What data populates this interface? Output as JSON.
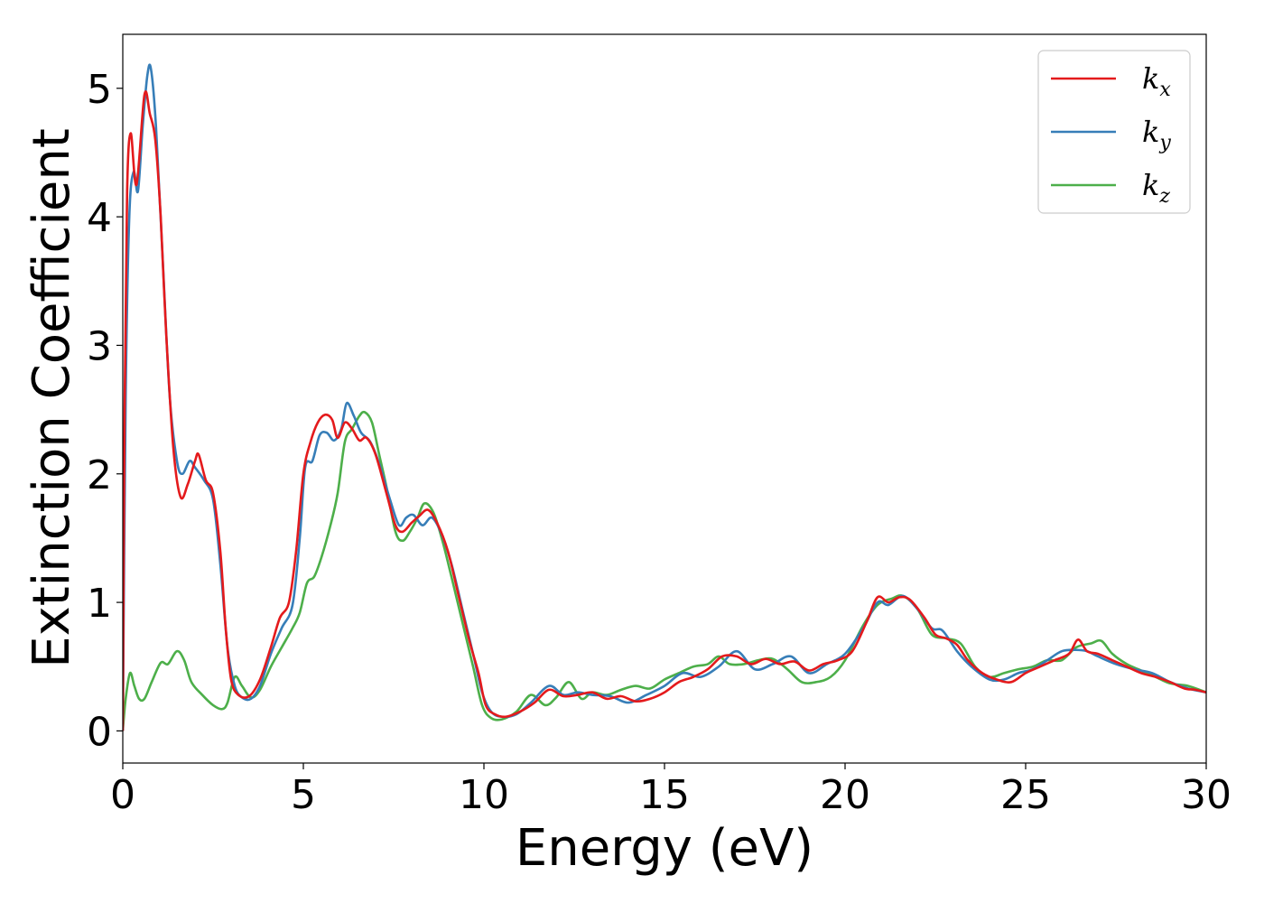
{
  "chart_data": {
    "type": "line",
    "title": "",
    "xlabel": "Energy (eV)",
    "ylabel": "Extinction Coefficient",
    "xlim": [
      0,
      30
    ],
    "ylim": [
      -0.25,
      5.42
    ],
    "xticks": [
      0,
      5,
      10,
      15,
      20,
      25,
      30
    ],
    "yticks": [
      0,
      1,
      2,
      3,
      4,
      5
    ],
    "grid": false,
    "legend_position": "top-right",
    "series": [
      {
        "name": "k",
        "subscript": "x",
        "color": "#e41a1c",
        "points": [
          [
            0,
            0
          ],
          [
            0.05,
            2.5
          ],
          [
            0.12,
            4.2
          ],
          [
            0.22,
            4.65
          ],
          [
            0.38,
            4.25
          ],
          [
            0.6,
            4.95
          ],
          [
            0.75,
            4.8
          ],
          [
            0.9,
            4.6
          ],
          [
            1.05,
            4.0
          ],
          [
            1.2,
            3.1
          ],
          [
            1.4,
            2.2
          ],
          [
            1.6,
            1.82
          ],
          [
            1.8,
            1.92
          ],
          [
            2.0,
            2.1
          ],
          [
            2.1,
            2.15
          ],
          [
            2.3,
            1.95
          ],
          [
            2.5,
            1.85
          ],
          [
            2.7,
            1.4
          ],
          [
            2.85,
            0.8
          ],
          [
            3.0,
            0.4
          ],
          [
            3.2,
            0.28
          ],
          [
            3.5,
            0.27
          ],
          [
            3.8,
            0.4
          ],
          [
            4.1,
            0.65
          ],
          [
            4.35,
            0.88
          ],
          [
            4.6,
            1.0
          ],
          [
            4.8,
            1.4
          ],
          [
            5.0,
            2.0
          ],
          [
            5.2,
            2.25
          ],
          [
            5.4,
            2.4
          ],
          [
            5.6,
            2.46
          ],
          [
            5.8,
            2.42
          ],
          [
            5.95,
            2.28
          ],
          [
            6.15,
            2.4
          ],
          [
            6.35,
            2.35
          ],
          [
            6.55,
            2.26
          ],
          [
            6.75,
            2.28
          ],
          [
            7.0,
            2.15
          ],
          [
            7.3,
            1.85
          ],
          [
            7.55,
            1.6
          ],
          [
            7.75,
            1.55
          ],
          [
            8.0,
            1.62
          ],
          [
            8.2,
            1.67
          ],
          [
            8.45,
            1.72
          ],
          [
            8.7,
            1.62
          ],
          [
            9.0,
            1.4
          ],
          [
            9.3,
            1.05
          ],
          [
            9.6,
            0.7
          ],
          [
            9.85,
            0.45
          ],
          [
            10.05,
            0.2
          ],
          [
            10.3,
            0.13
          ],
          [
            10.6,
            0.11
          ],
          [
            11.0,
            0.15
          ],
          [
            11.4,
            0.22
          ],
          [
            11.8,
            0.32
          ],
          [
            12.2,
            0.27
          ],
          [
            12.6,
            0.28
          ],
          [
            13.0,
            0.3
          ],
          [
            13.4,
            0.25
          ],
          [
            13.8,
            0.27
          ],
          [
            14.2,
            0.23
          ],
          [
            14.6,
            0.25
          ],
          [
            15.0,
            0.3
          ],
          [
            15.4,
            0.38
          ],
          [
            15.8,
            0.42
          ],
          [
            16.2,
            0.48
          ],
          [
            16.6,
            0.58
          ],
          [
            17.0,
            0.58
          ],
          [
            17.4,
            0.52
          ],
          [
            17.8,
            0.56
          ],
          [
            18.2,
            0.52
          ],
          [
            18.6,
            0.54
          ],
          [
            19.0,
            0.47
          ],
          [
            19.4,
            0.52
          ],
          [
            19.8,
            0.55
          ],
          [
            20.2,
            0.62
          ],
          [
            20.6,
            0.85
          ],
          [
            20.9,
            1.04
          ],
          [
            21.2,
            1.0
          ],
          [
            21.5,
            1.04
          ],
          [
            21.8,
            1.02
          ],
          [
            22.2,
            0.88
          ],
          [
            22.5,
            0.75
          ],
          [
            22.8,
            0.72
          ],
          [
            23.1,
            0.67
          ],
          [
            23.4,
            0.55
          ],
          [
            23.8,
            0.45
          ],
          [
            24.2,
            0.4
          ],
          [
            24.6,
            0.38
          ],
          [
            25.0,
            0.45
          ],
          [
            25.4,
            0.5
          ],
          [
            25.8,
            0.55
          ],
          [
            26.2,
            0.6
          ],
          [
            26.45,
            0.71
          ],
          [
            26.7,
            0.62
          ],
          [
            27.0,
            0.6
          ],
          [
            27.4,
            0.55
          ],
          [
            27.8,
            0.5
          ],
          [
            28.2,
            0.45
          ],
          [
            28.6,
            0.42
          ],
          [
            29.0,
            0.38
          ],
          [
            29.4,
            0.33
          ],
          [
            29.7,
            0.32
          ],
          [
            30.0,
            0.3
          ]
        ]
      },
      {
        "name": "k",
        "subscript": "y",
        "color": "#377eb8",
        "points": [
          [
            0,
            0
          ],
          [
            0.08,
            2.6
          ],
          [
            0.18,
            4.0
          ],
          [
            0.3,
            4.35
          ],
          [
            0.42,
            4.2
          ],
          [
            0.55,
            4.7
          ],
          [
            0.68,
            5.1
          ],
          [
            0.78,
            5.15
          ],
          [
            0.92,
            4.7
          ],
          [
            1.1,
            3.7
          ],
          [
            1.3,
            2.6
          ],
          [
            1.5,
            2.1
          ],
          [
            1.65,
            2.0
          ],
          [
            1.85,
            2.1
          ],
          [
            2.0,
            2.05
          ],
          [
            2.25,
            1.95
          ],
          [
            2.5,
            1.8
          ],
          [
            2.7,
            1.3
          ],
          [
            2.9,
            0.65
          ],
          [
            3.1,
            0.35
          ],
          [
            3.3,
            0.26
          ],
          [
            3.55,
            0.25
          ],
          [
            3.8,
            0.35
          ],
          [
            4.1,
            0.6
          ],
          [
            4.4,
            0.8
          ],
          [
            4.7,
            0.98
          ],
          [
            4.9,
            1.5
          ],
          [
            5.05,
            2.05
          ],
          [
            5.25,
            2.1
          ],
          [
            5.45,
            2.3
          ],
          [
            5.65,
            2.32
          ],
          [
            5.85,
            2.26
          ],
          [
            6.05,
            2.35
          ],
          [
            6.2,
            2.55
          ],
          [
            6.4,
            2.45
          ],
          [
            6.6,
            2.32
          ],
          [
            6.85,
            2.25
          ],
          [
            7.1,
            2.08
          ],
          [
            7.4,
            1.8
          ],
          [
            7.65,
            1.6
          ],
          [
            7.85,
            1.66
          ],
          [
            8.05,
            1.68
          ],
          [
            8.3,
            1.6
          ],
          [
            8.55,
            1.66
          ],
          [
            8.8,
            1.55
          ],
          [
            9.1,
            1.3
          ],
          [
            9.4,
            0.95
          ],
          [
            9.7,
            0.6
          ],
          [
            9.95,
            0.3
          ],
          [
            10.2,
            0.15
          ],
          [
            10.5,
            0.11
          ],
          [
            10.9,
            0.13
          ],
          [
            11.3,
            0.22
          ],
          [
            11.8,
            0.35
          ],
          [
            12.2,
            0.28
          ],
          [
            12.6,
            0.3
          ],
          [
            13.0,
            0.28
          ],
          [
            13.5,
            0.27
          ],
          [
            14.0,
            0.22
          ],
          [
            14.5,
            0.28
          ],
          [
            15.0,
            0.35
          ],
          [
            15.5,
            0.45
          ],
          [
            16.0,
            0.42
          ],
          [
            16.5,
            0.5
          ],
          [
            17.0,
            0.62
          ],
          [
            17.5,
            0.48
          ],
          [
            18.0,
            0.52
          ],
          [
            18.5,
            0.58
          ],
          [
            19.0,
            0.45
          ],
          [
            19.5,
            0.52
          ],
          [
            20.0,
            0.6
          ],
          [
            20.5,
            0.8
          ],
          [
            20.9,
            1.0
          ],
          [
            21.2,
            0.98
          ],
          [
            21.6,
            1.05
          ],
          [
            22.0,
            0.95
          ],
          [
            22.4,
            0.8
          ],
          [
            22.7,
            0.78
          ],
          [
            23.1,
            0.62
          ],
          [
            23.5,
            0.5
          ],
          [
            24.0,
            0.4
          ],
          [
            24.4,
            0.4
          ],
          [
            24.8,
            0.45
          ],
          [
            25.2,
            0.48
          ],
          [
            25.6,
            0.55
          ],
          [
            26.0,
            0.62
          ],
          [
            26.4,
            0.63
          ],
          [
            26.7,
            0.62
          ],
          [
            27.0,
            0.58
          ],
          [
            27.5,
            0.52
          ],
          [
            28.0,
            0.48
          ],
          [
            28.5,
            0.45
          ],
          [
            29.0,
            0.38
          ],
          [
            29.5,
            0.33
          ],
          [
            30.0,
            0.3
          ]
        ]
      },
      {
        "name": "k",
        "subscript": "z",
        "color": "#4daf4a",
        "points": [
          [
            0,
            0
          ],
          [
            0.08,
            0.25
          ],
          [
            0.2,
            0.45
          ],
          [
            0.32,
            0.35
          ],
          [
            0.45,
            0.25
          ],
          [
            0.6,
            0.25
          ],
          [
            0.8,
            0.38
          ],
          [
            1.05,
            0.53
          ],
          [
            1.25,
            0.52
          ],
          [
            1.5,
            0.62
          ],
          [
            1.7,
            0.55
          ],
          [
            1.9,
            0.38
          ],
          [
            2.2,
            0.28
          ],
          [
            2.5,
            0.2
          ],
          [
            2.75,
            0.17
          ],
          [
            2.9,
            0.22
          ],
          [
            3.1,
            0.42
          ],
          [
            3.3,
            0.35
          ],
          [
            3.55,
            0.26
          ],
          [
            3.8,
            0.32
          ],
          [
            4.1,
            0.5
          ],
          [
            4.4,
            0.65
          ],
          [
            4.7,
            0.8
          ],
          [
            4.9,
            0.92
          ],
          [
            5.1,
            1.15
          ],
          [
            5.3,
            1.2
          ],
          [
            5.5,
            1.35
          ],
          [
            5.75,
            1.6
          ],
          [
            5.95,
            1.85
          ],
          [
            6.15,
            2.25
          ],
          [
            6.35,
            2.35
          ],
          [
            6.55,
            2.45
          ],
          [
            6.7,
            2.48
          ],
          [
            6.9,
            2.4
          ],
          [
            7.1,
            2.15
          ],
          [
            7.3,
            1.9
          ],
          [
            7.55,
            1.55
          ],
          [
            7.75,
            1.48
          ],
          [
            7.95,
            1.55
          ],
          [
            8.15,
            1.65
          ],
          [
            8.35,
            1.77
          ],
          [
            8.6,
            1.7
          ],
          [
            8.85,
            1.48
          ],
          [
            9.1,
            1.2
          ],
          [
            9.4,
            0.85
          ],
          [
            9.7,
            0.5
          ],
          [
            9.95,
            0.2
          ],
          [
            10.2,
            0.1
          ],
          [
            10.5,
            0.09
          ],
          [
            10.9,
            0.15
          ],
          [
            11.3,
            0.28
          ],
          [
            11.7,
            0.2
          ],
          [
            12.0,
            0.26
          ],
          [
            12.35,
            0.38
          ],
          [
            12.7,
            0.25
          ],
          [
            13.0,
            0.3
          ],
          [
            13.4,
            0.28
          ],
          [
            13.8,
            0.32
          ],
          [
            14.2,
            0.35
          ],
          [
            14.6,
            0.33
          ],
          [
            15.0,
            0.4
          ],
          [
            15.4,
            0.45
          ],
          [
            15.8,
            0.5
          ],
          [
            16.2,
            0.52
          ],
          [
            16.5,
            0.58
          ],
          [
            16.8,
            0.52
          ],
          [
            17.2,
            0.52
          ],
          [
            17.6,
            0.55
          ],
          [
            18.0,
            0.56
          ],
          [
            18.4,
            0.48
          ],
          [
            18.8,
            0.38
          ],
          [
            19.2,
            0.38
          ],
          [
            19.6,
            0.42
          ],
          [
            20.0,
            0.55
          ],
          [
            20.5,
            0.82
          ],
          [
            20.9,
            0.98
          ],
          [
            21.3,
            1.03
          ],
          [
            21.6,
            1.05
          ],
          [
            22.0,
            0.95
          ],
          [
            22.4,
            0.75
          ],
          [
            22.8,
            0.72
          ],
          [
            23.2,
            0.68
          ],
          [
            23.6,
            0.5
          ],
          [
            24.0,
            0.42
          ],
          [
            24.4,
            0.45
          ],
          [
            24.8,
            0.48
          ],
          [
            25.2,
            0.5
          ],
          [
            25.6,
            0.55
          ],
          [
            26.0,
            0.55
          ],
          [
            26.4,
            0.65
          ],
          [
            26.8,
            0.68
          ],
          [
            27.1,
            0.7
          ],
          [
            27.4,
            0.6
          ],
          [
            27.8,
            0.52
          ],
          [
            28.2,
            0.47
          ],
          [
            28.6,
            0.42
          ],
          [
            29.0,
            0.37
          ],
          [
            29.5,
            0.35
          ],
          [
            30.0,
            0.3
          ]
        ]
      }
    ]
  }
}
